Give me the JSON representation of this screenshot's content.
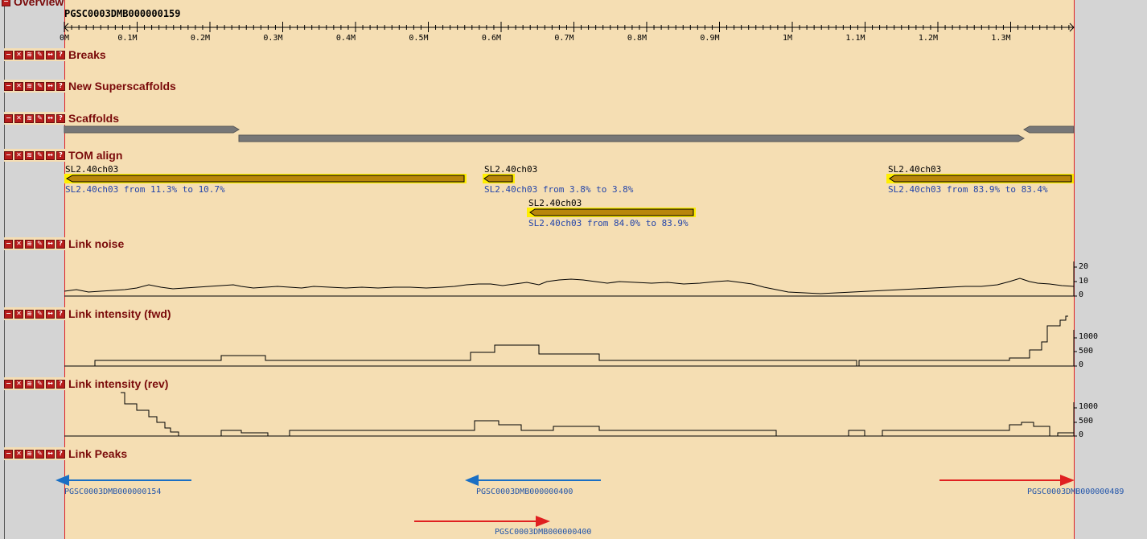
{
  "overview": {
    "title": "Overview",
    "scaffold": "PGSC0003DMB000000159"
  },
  "ruler": {
    "ticks": [
      "0M",
      "0.1M",
      "0.2M",
      "0.3M",
      "0.4M",
      "0.5M",
      "0.6M",
      "0.7M",
      "0.8M",
      "0.9M",
      "1M",
      "1.1M",
      "1.2M",
      "1.3M"
    ]
  },
  "tracks": {
    "breaks": "Breaks",
    "new_superscaffolds": "New Superscaffolds",
    "scaffolds": "Scaffolds",
    "tom_align": "TOM align",
    "link_noise": "Link noise",
    "link_fwd": "Link intensity (fwd)",
    "link_rev": "Link intensity (rev)",
    "link_peaks": "Link Peaks"
  },
  "tom": {
    "f1_name": "SL2.40ch03",
    "f1_desc": "SL2.40ch03 from 11.3% to 10.7%",
    "f2_name": "SL2.40ch03",
    "f2_desc": "SL2.40ch03 from 3.8% to 3.8%",
    "f3_name": "SL2.40ch03",
    "f3_desc": "SL2.40ch03 from 84.0% to 83.9%",
    "f4_name": "SL2.40ch03",
    "f4_desc": "SL2.40ch03 from 83.9% to 83.4%"
  },
  "noise_axis": [
    "20",
    "10",
    "0"
  ],
  "fwd_axis": [
    "1000",
    "500",
    "0"
  ],
  "rev_axis": [
    "1000",
    "500",
    "0"
  ],
  "peaks": {
    "p1": "PGSC0003DMB000000154",
    "p2": "PGSC0003DMB000000400",
    "p3": "PGSC0003DMB000000489",
    "p4": "PGSC0003DMB000000400"
  },
  "colors": {
    "background": "#f5deb3",
    "panel": "#d4d4d4",
    "highlight": "#ffee00",
    "forward": "#e02020",
    "reverse": "#1a6fc4",
    "button": "#b81c1c"
  },
  "icons": [
    "minus-icon",
    "close-icon",
    "rss-icon",
    "edit-icon",
    "resize-icon",
    "help-icon"
  ]
}
